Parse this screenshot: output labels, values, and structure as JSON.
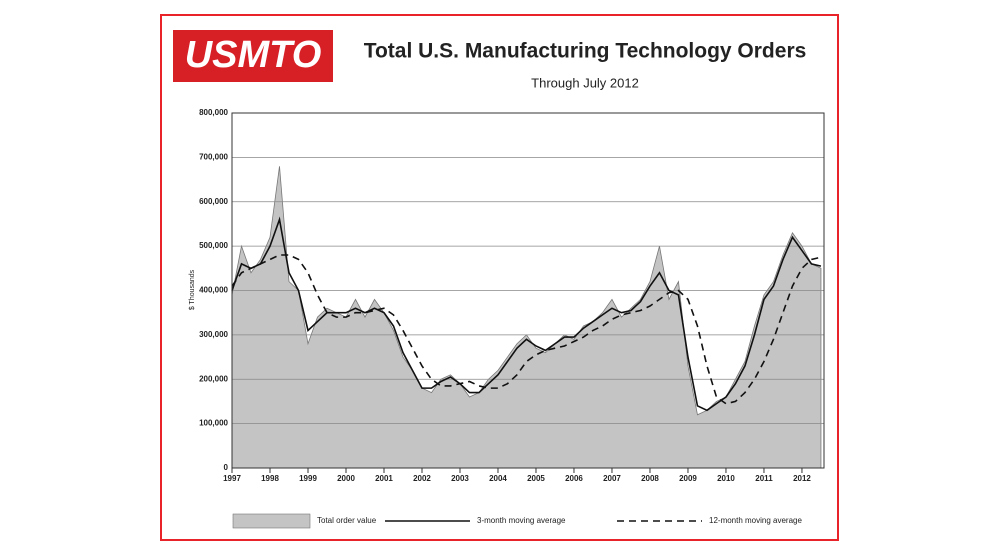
{
  "chart_data": {
    "type": "line",
    "logo": "USMTO",
    "title": "Total U.S. Manufacturing Technology Orders",
    "subtitle": "Through July 2012",
    "y_label": "$ Thousands",
    "x": [
      1997,
      1997.25,
      1997.5,
      1997.75,
      1998,
      1998.25,
      1998.5,
      1998.75,
      1999,
      1999.25,
      1999.5,
      1999.75,
      2000,
      2000.25,
      2000.5,
      2000.75,
      2001,
      2001.25,
      2001.5,
      2001.75,
      2002,
      2002.25,
      2002.5,
      2002.75,
      2003,
      2003.25,
      2003.5,
      2003.75,
      2004,
      2004.25,
      2004.5,
      2004.75,
      2005,
      2005.25,
      2005.5,
      2005.75,
      2006,
      2006.25,
      2006.5,
      2006.75,
      2007,
      2007.25,
      2007.5,
      2007.75,
      2008,
      2008.25,
      2008.5,
      2008.75,
      2009,
      2009.25,
      2009.5,
      2009.75,
      2010,
      2010.25,
      2010.5,
      2010.75,
      2011,
      2011.25,
      2011.5,
      2011.75,
      2012,
      2012.25,
      2012.5
    ],
    "series": [
      {
        "name": "Total order value",
        "style": "area",
        "color": "#c4c4c4",
        "values": [
          390000,
          500000,
          440000,
          470000,
          520000,
          680000,
          420000,
          400000,
          280000,
          340000,
          360000,
          350000,
          340000,
          380000,
          340000,
          380000,
          350000,
          310000,
          250000,
          220000,
          180000,
          170000,
          200000,
          210000,
          190000,
          160000,
          170000,
          200000,
          220000,
          250000,
          280000,
          300000,
          270000,
          260000,
          280000,
          300000,
          290000,
          320000,
          330000,
          350000,
          380000,
          340000,
          360000,
          380000,
          420000,
          500000,
          380000,
          420000,
          230000,
          120000,
          130000,
          150000,
          160000,
          200000,
          240000,
          320000,
          390000,
          420000,
          480000,
          530000,
          500000,
          460000,
          450000
        ]
      },
      {
        "name": "3-month moving average",
        "style": "solid",
        "color": "#111111",
        "values": [
          400000,
          460000,
          450000,
          460000,
          500000,
          560000,
          440000,
          400000,
          310000,
          330000,
          350000,
          350000,
          350000,
          360000,
          350000,
          360000,
          350000,
          320000,
          260000,
          220000,
          180000,
          180000,
          195000,
          205000,
          190000,
          170000,
          170000,
          190000,
          210000,
          240000,
          270000,
          290000,
          275000,
          265000,
          280000,
          295000,
          295000,
          315000,
          330000,
          345000,
          360000,
          350000,
          355000,
          375000,
          410000,
          440000,
          400000,
          390000,
          250000,
          140000,
          130000,
          145000,
          160000,
          190000,
          230000,
          300000,
          380000,
          410000,
          470000,
          520000,
          490000,
          460000,
          455000
        ]
      },
      {
        "name": "12-month moving average",
        "style": "dashed",
        "color": "#111111",
        "values": [
          410000,
          440000,
          450000,
          460000,
          470000,
          480000,
          480000,
          470000,
          440000,
          390000,
          350000,
          340000,
          340000,
          350000,
          350000,
          355000,
          360000,
          345000,
          310000,
          270000,
          230000,
          200000,
          185000,
          185000,
          190000,
          195000,
          185000,
          180000,
          180000,
          190000,
          210000,
          240000,
          255000,
          265000,
          270000,
          275000,
          285000,
          295000,
          310000,
          320000,
          335000,
          345000,
          350000,
          355000,
          365000,
          380000,
          395000,
          400000,
          380000,
          320000,
          230000,
          160000,
          145000,
          150000,
          170000,
          200000,
          240000,
          290000,
          350000,
          410000,
          450000,
          470000,
          475000
        ]
      }
    ],
    "xlim": [
      1997,
      2012.58
    ],
    "xticks": [
      1997,
      1998,
      1999,
      2000,
      2001,
      2002,
      2003,
      2004,
      2005,
      2006,
      2007,
      2008,
      2009,
      2010,
      2011,
      2012
    ],
    "ylim": [
      0,
      800000
    ],
    "yticks": [
      0,
      {
        "value": 100000,
        "label": "100,000"
      },
      {
        "value": 200000,
        "label": "200,000"
      },
      {
        "value": 300000,
        "label": "300,000"
      },
      {
        "value": 400000,
        "label": "400,000"
      },
      {
        "value": 500000,
        "label": "500,000"
      },
      {
        "value": 600000,
        "label": "600,000"
      },
      {
        "value": 700000,
        "label": "700,000"
      },
      {
        "value": 800000,
        "label": "800,000"
      }
    ],
    "grid": true,
    "legend": "bottom"
  }
}
